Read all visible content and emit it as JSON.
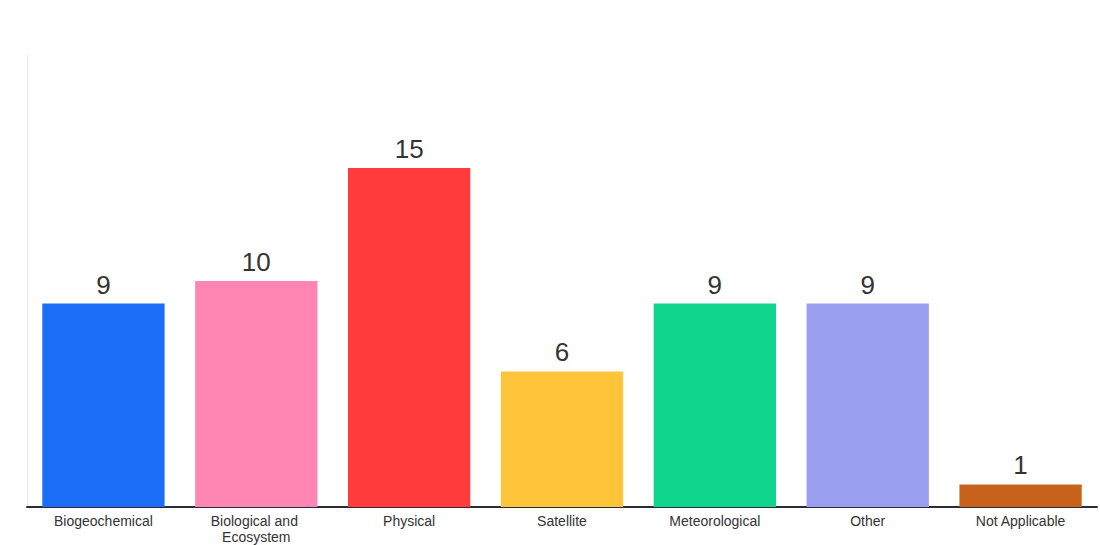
{
  "chart_data": {
    "type": "bar",
    "categories": [
      "Biogeochemical",
      "Biological and Ecosystem",
      "Physical",
      "Satellite",
      "Meteorological",
      "Other",
      "Not Applicable"
    ],
    "values": [
      9,
      10,
      15,
      6,
      9,
      9,
      1
    ],
    "colors": [
      "#1a6ef5",
      "#ff85b3",
      "#ff3b3b",
      "#ffc53a",
      "#0fd68c",
      "#9a9ff0",
      "#c8621a"
    ],
    "ylim": [
      0,
      20
    ],
    "grid": false,
    "data_labels": true,
    "tick_labels": "x"
  }
}
